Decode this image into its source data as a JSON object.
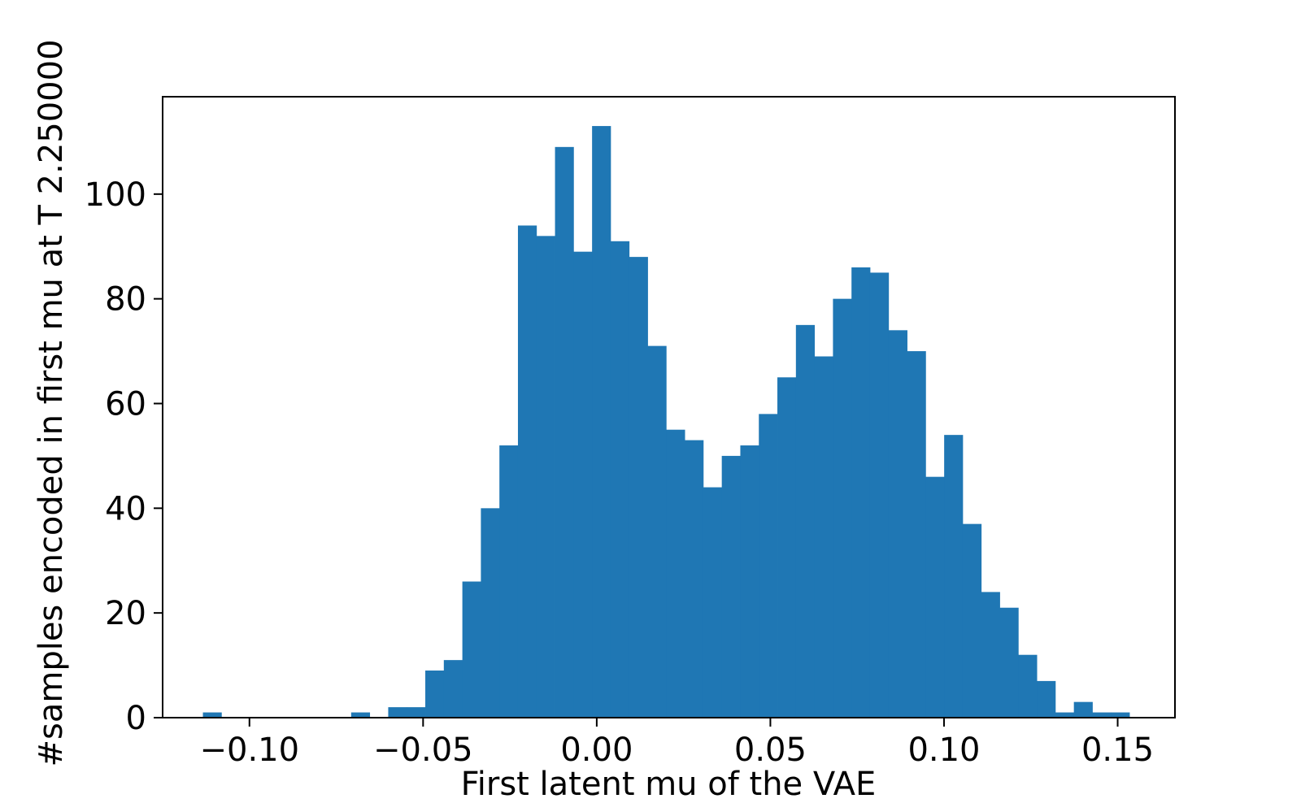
{
  "chart_data": {
    "type": "bar",
    "title": "",
    "xlabel": "First latent mu of the VAE",
    "ylabel": "#samples encoded in first mu at T 2.250000",
    "xlim": [
      -0.125,
      0.1665
    ],
    "ylim": [
      0,
      118.6
    ],
    "x_ticks": [
      -0.1,
      -0.05,
      0.0,
      0.05,
      0.1,
      0.15
    ],
    "x_tick_labels": [
      "−0.10",
      "−0.05",
      "0.00",
      "0.05",
      "0.10",
      "0.15"
    ],
    "y_ticks": [
      0,
      20,
      40,
      60,
      80,
      100
    ],
    "y_tick_labels": [
      "0",
      "20",
      "40",
      "60",
      "80",
      "100"
    ],
    "grid": false,
    "bar_color": "#1f77b4",
    "bin_start": -0.1134,
    "bin_width": 0.005336,
    "values": [
      1,
      0,
      0,
      0,
      0,
      0,
      0,
      0,
      1,
      0,
      2,
      2,
      9,
      11,
      26,
      40,
      52,
      94,
      92,
      109,
      89,
      113,
      91,
      88,
      71,
      55,
      53,
      44,
      50,
      52,
      58,
      65,
      75,
      69,
      80,
      86,
      85,
      74,
      70,
      46,
      54,
      37,
      24,
      21,
      12,
      7,
      1,
      3,
      1,
      1
    ]
  }
}
